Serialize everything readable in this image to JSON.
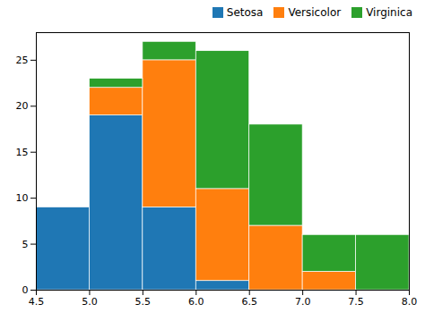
{
  "chart_data": {
    "type": "histogram",
    "bins": [
      4.5,
      5.0,
      5.5,
      6.0,
      6.5,
      7.0,
      7.5,
      8.0
    ],
    "series": [
      {
        "name": "Setosa",
        "color": "#1f77b4",
        "values": [
          9,
          19,
          9,
          1,
          0,
          0,
          0
        ]
      },
      {
        "name": "Versicolor",
        "color": "#ff7f0e",
        "values": [
          0,
          3,
          16,
          10,
          7,
          2,
          0
        ]
      },
      {
        "name": "Virginica",
        "color": "#2ca02c",
        "values": [
          0,
          1,
          2,
          15,
          11,
          4,
          6
        ]
      }
    ],
    "stacked": true,
    "xlim": [
      4.5,
      8.0
    ],
    "xticks": [
      4.5,
      {
        "value": 5.0,
        "label": "5.0"
      },
      5.5,
      {
        "value": 6.0,
        "label": "6.0"
      },
      6.5,
      {
        "value": 7.0,
        "label": "7.0"
      },
      7.5,
      {
        "value": 8.0,
        "label": "8.0"
      }
    ],
    "ylim": [
      0,
      28
    ],
    "yticks": [
      0,
      5,
      10,
      15,
      20,
      25
    ],
    "grid": false,
    "legend": "upper right"
  }
}
